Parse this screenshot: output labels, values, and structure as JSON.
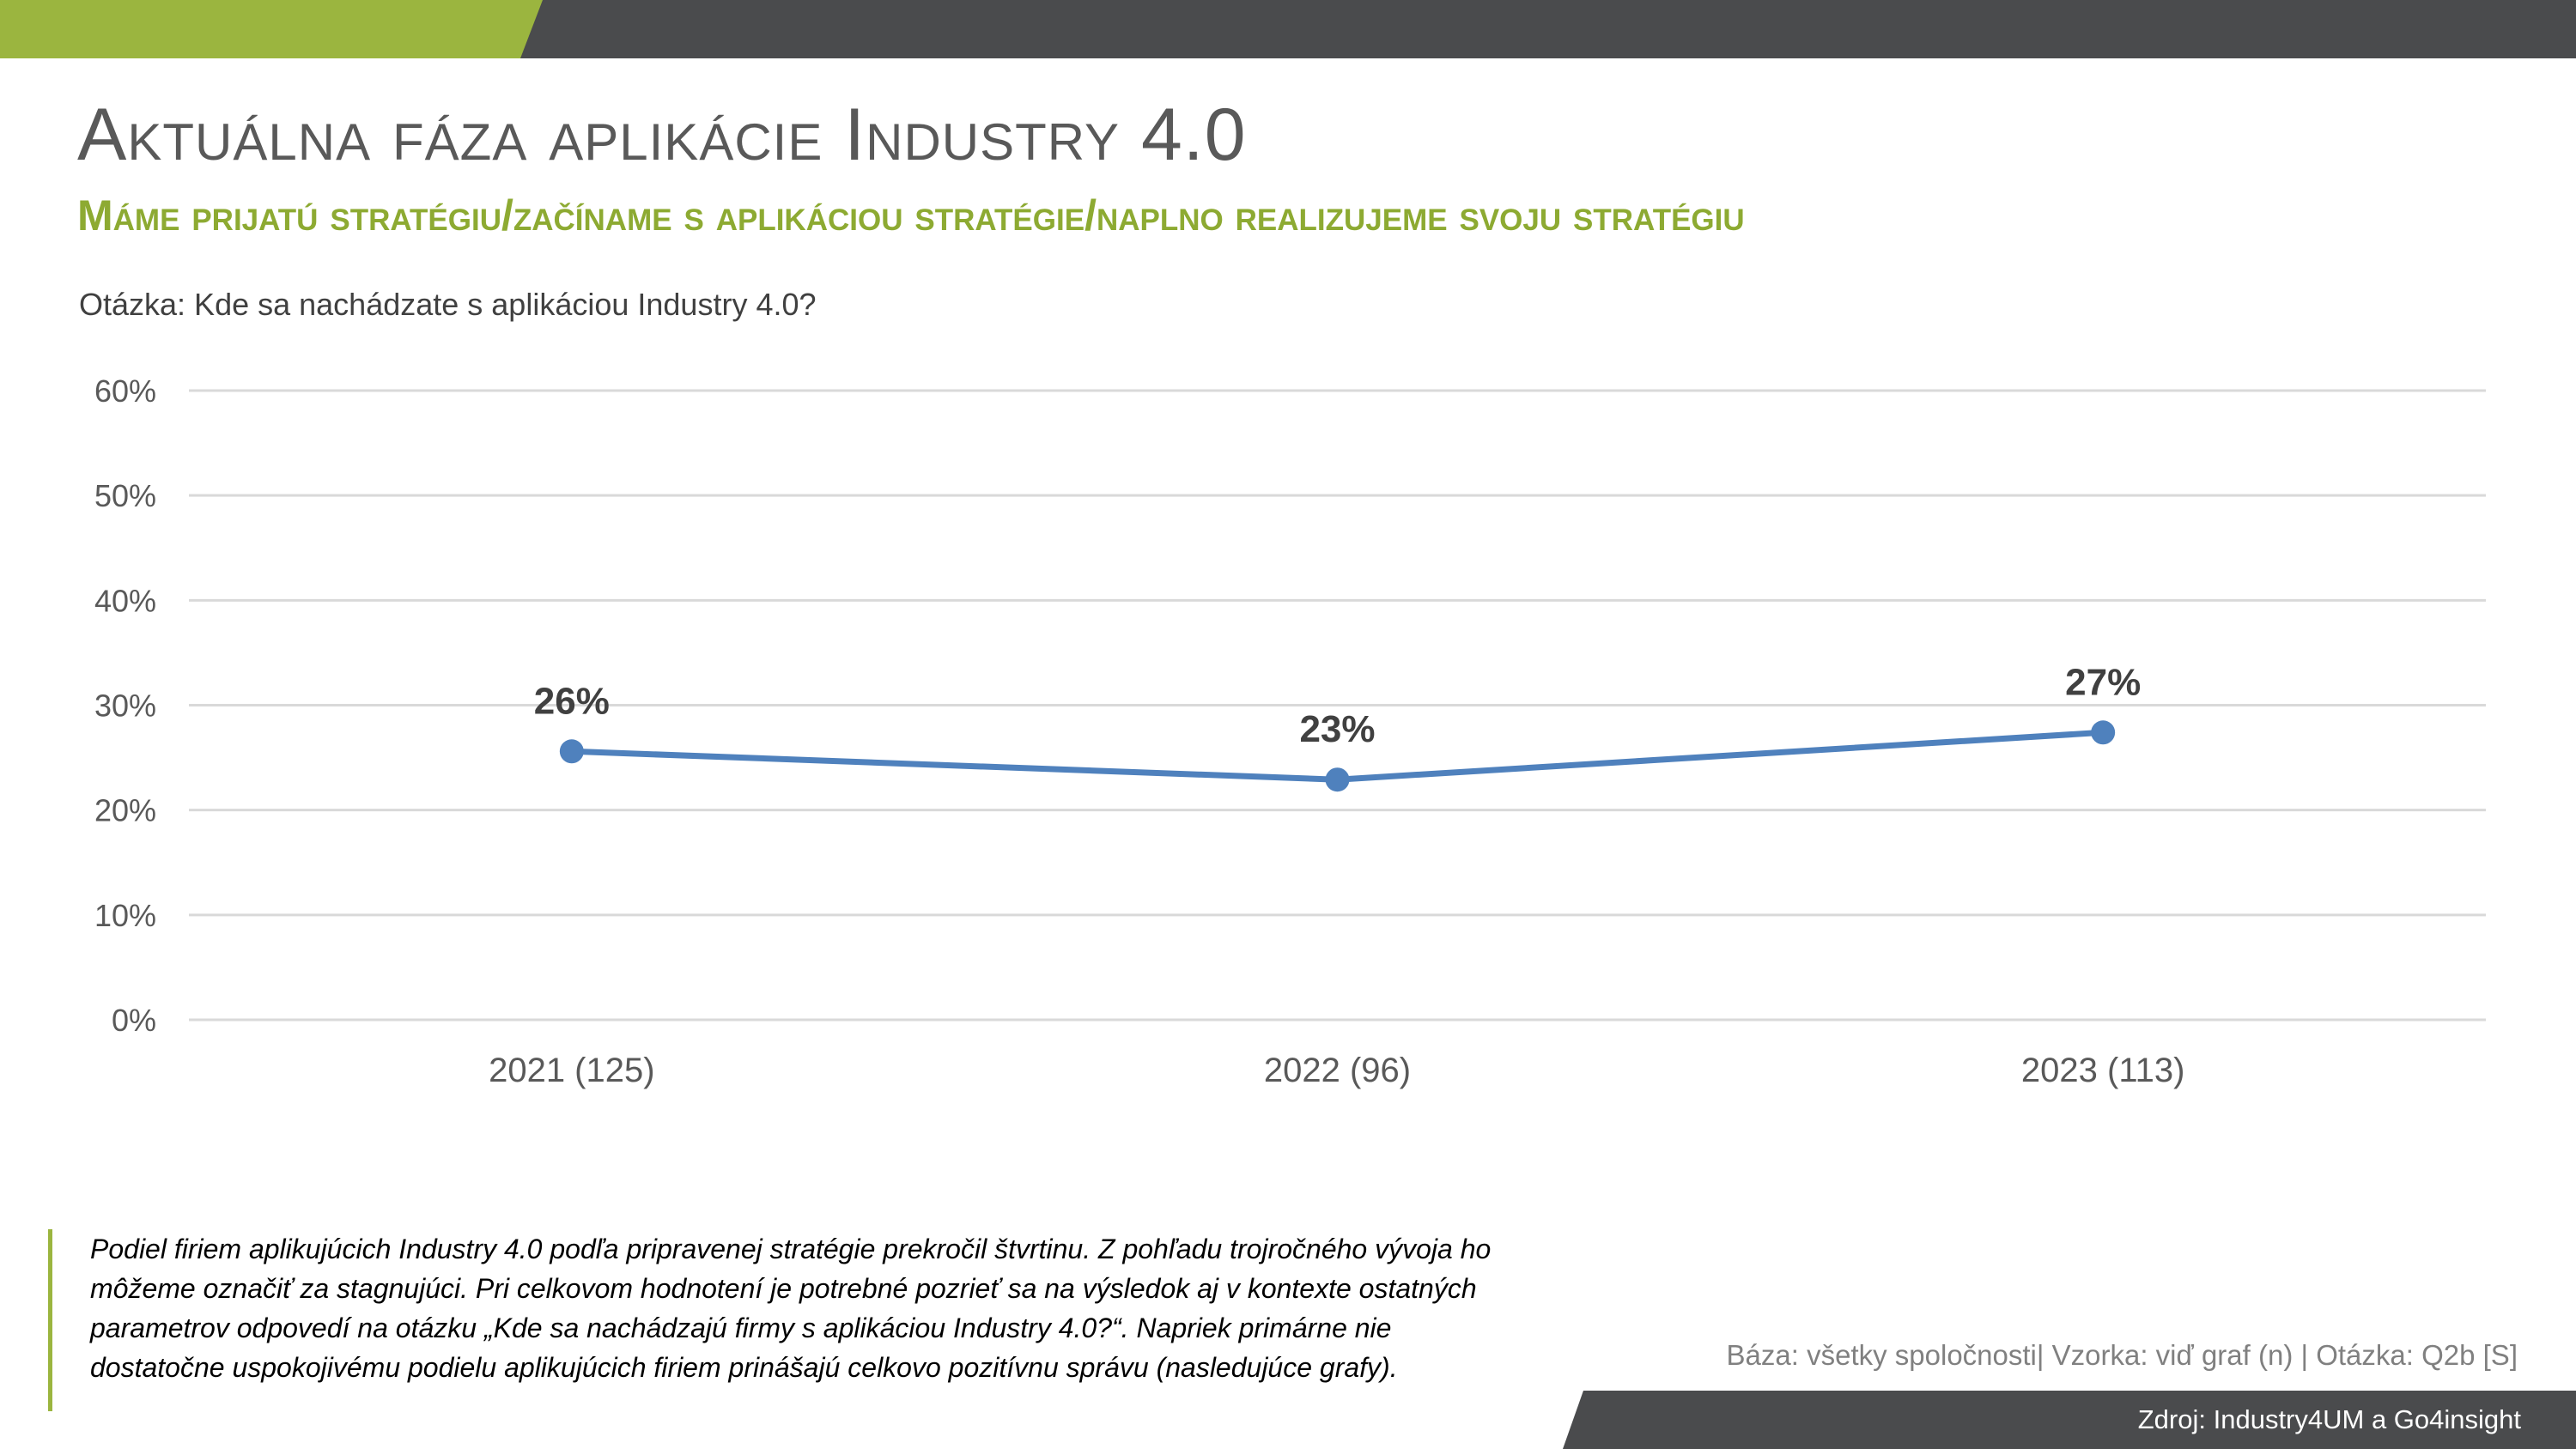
{
  "header": {
    "title": "Aktuálna fáza aplikácie Industry 4.0",
    "subtitle": "Máme prijatú stratégiu/začíname s aplikáciou stratégie/naplno realizujeme svoju stratégiu",
    "question": "Otázka: Kde sa nachádzate s aplikáciou Industry 4.0?"
  },
  "colors": {
    "accent_green": "#9BB53F",
    "dark_gray": "#4A4B4D",
    "line_blue": "#4F81BD"
  },
  "chart_data": {
    "type": "line",
    "categories": [
      "2021 (125)",
      "2022 (96)",
      "2023 (113)"
    ],
    "series": [
      {
        "values": [
          25.6,
          22.9,
          27.4
        ],
        "labels": [
          "26%",
          "23%",
          "27%"
        ]
      }
    ],
    "ylim": [
      0,
      60
    ],
    "yticks": [
      0,
      10,
      20,
      30,
      40,
      50,
      60
    ],
    "ytick_labels": [
      "0%",
      "10%",
      "20%",
      "30%",
      "40%",
      "50%",
      "60%"
    ],
    "grid": true,
    "legend": "none"
  },
  "footer": {
    "note": "Podiel firiem aplikujúcich Industry 4.0 podľa pripravenej stratégie prekročil štvrtinu. Z pohľadu trojročného vývoja ho môžeme označiť za stagnujúci. Pri celkovom hodnotení je potrebné pozrieť sa na výsledok aj v kontexte ostatných parametrov odpovedí na otázku „Kde sa nachádzajú firmy s aplikáciou Industry 4.0?“. Napriek primárne nie dostatočne uspokojivému podielu aplikujúcich firiem prinášajú celkovo pozitívnu správu (nasledujúce grafy).",
    "base": "Báza: všetky spoločnosti| Vzorka: viď graf (n) | Otázka: Q2b [S]",
    "source": "Zdroj: Industry4UM a Go4insight"
  }
}
